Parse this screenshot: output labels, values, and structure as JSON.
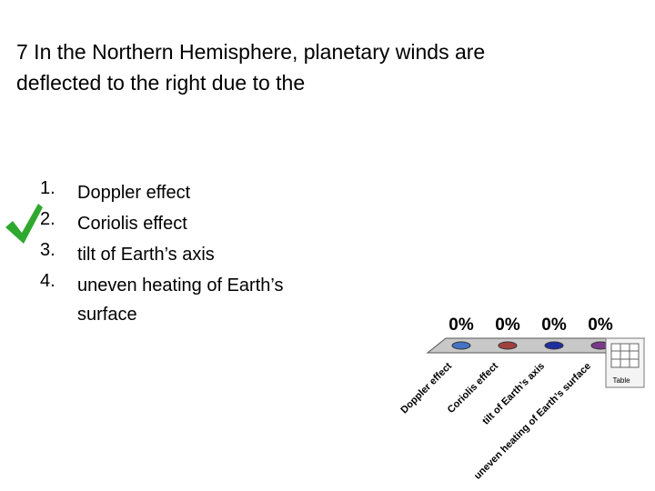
{
  "question": "7 In the Northern Hemisphere, planetary winds are deflected to the right due to the",
  "options": [
    {
      "number": "1.",
      "text": "Doppler effect"
    },
    {
      "number": "2.",
      "text": "Coriolis effect"
    },
    {
      "number": "3.",
      "text": "tilt of Earth’s axis"
    },
    {
      "number": "4.",
      "text": "uneven heating of Earth’s surface"
    }
  ],
  "table_icon_label": "Table",
  "chart_data": {
    "type": "bar",
    "categories": [
      "Doppler effect",
      "Coriolis effect",
      "tilt of Earth’s axis",
      "uneven heating of Earth’s surface"
    ],
    "values": [
      0,
      0,
      0,
      0
    ],
    "value_labels": [
      "0%",
      "0%",
      "0%",
      "0%"
    ],
    "colors": [
      "#4472c4",
      "#a0403d",
      "#1f2fa0",
      "#7a3a8a"
    ]
  }
}
